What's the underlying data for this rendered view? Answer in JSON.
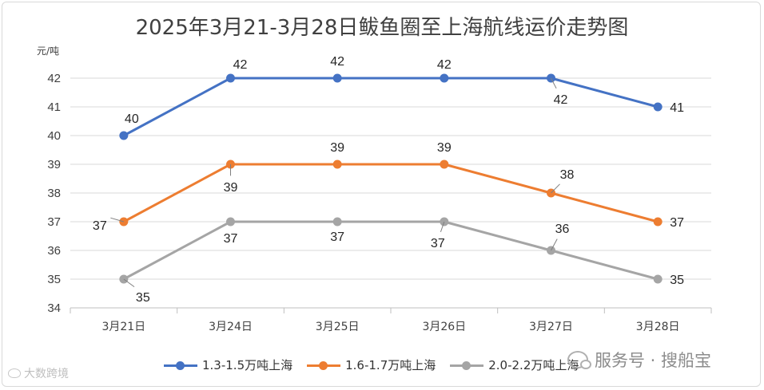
{
  "chart_data": {
    "type": "line",
    "title": "2025年3月21-3月28日鲅鱼圈至上海航线运价走势图",
    "ylabel": "元/吨",
    "xlabel": "",
    "ylim": [
      34,
      42
    ],
    "yticks": [
      34,
      35,
      36,
      37,
      38,
      39,
      40,
      41,
      42
    ],
    "categories": [
      "3月21日",
      "3月24日",
      "3月25日",
      "3月26日",
      "3月27日",
      "3月28日"
    ],
    "grid": true,
    "legend_position": "bottom",
    "series": [
      {
        "name": "1.3-1.5万吨上海",
        "color": "#4472c4",
        "values": [
          40,
          42,
          42,
          42,
          42,
          41
        ]
      },
      {
        "name": "1.6-1.7万吨上海",
        "color": "#ed7d31",
        "values": [
          37,
          39,
          39,
          39,
          38,
          37
        ]
      },
      {
        "name": "2.0-2.2万吨上海",
        "color": "#a5a5a5",
        "values": [
          35,
          37,
          37,
          37,
          36,
          35
        ]
      }
    ]
  },
  "watermarks": {
    "left": "大数跨境",
    "right": "服务号 · 搜船宝"
  }
}
